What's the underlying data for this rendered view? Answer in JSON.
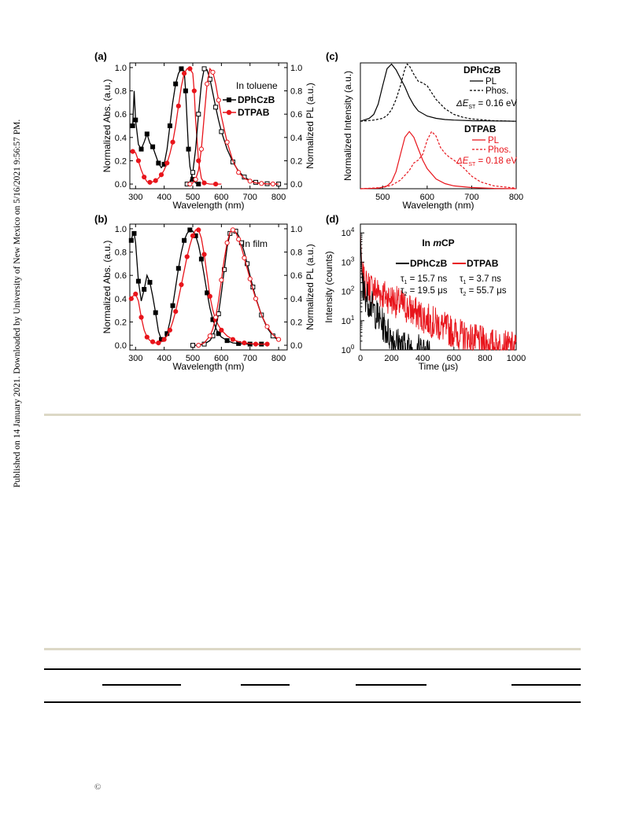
{
  "side_note": "Published on 14 January 2021. Downloaded by University of New Mexico on 5/16/2021 9:56:57 PM.",
  "copyright_symbol": "©",
  "colors": {
    "black_series": "#000000",
    "red_series": "#e8141b"
  },
  "chart_data": [
    {
      "panel": "(a)",
      "type": "line",
      "annotation": "In toluene",
      "xlabel": "Wavelength (nm)",
      "ylabel_left": "Normalized Abs. (a.u.)",
      "ylabel_right": "Normalized PL (a.u.)",
      "xlim": [
        280,
        830
      ],
      "ylim": [
        -0.04,
        1.04
      ],
      "xticks": [
        "300",
        "400",
        "500",
        "600",
        "700",
        "800"
      ],
      "yticks": [
        "0.0",
        "0.2",
        "0.4",
        "0.6",
        "0.8",
        "1.0"
      ],
      "legend": {
        "placement": "right",
        "entries": [
          "DPhCzB",
          "DTPAB"
        ]
      },
      "series": [
        {
          "name": "DPhCzB",
          "role": "absorption",
          "color": "#000000",
          "marker": "square-filled",
          "x": [
            290,
            295,
            300,
            310,
            320,
            330,
            340,
            350,
            360,
            370,
            380,
            390,
            400,
            410,
            420,
            430,
            440,
            450,
            460,
            470,
            475,
            480,
            485,
            490,
            500,
            510,
            520
          ],
          "y": [
            0.5,
            0.8,
            0.55,
            0.34,
            0.3,
            0.36,
            0.43,
            0.35,
            0.32,
            0.25,
            0.18,
            0.14,
            0.17,
            0.3,
            0.5,
            0.7,
            0.86,
            0.95,
            0.99,
            0.97,
            0.8,
            0.55,
            0.3,
            0.15,
            0.04,
            0.01,
            0.0
          ]
        },
        {
          "name": "DTPAB",
          "role": "absorption",
          "color": "#e8141b",
          "marker": "circle-filled",
          "x": [
            290,
            300,
            310,
            320,
            330,
            340,
            350,
            360,
            370,
            380,
            390,
            400,
            410,
            420,
            430,
            440,
            450,
            460,
            470,
            480,
            490,
            500,
            505,
            510,
            520,
            530,
            540,
            560,
            580,
            600
          ],
          "y": [
            0.28,
            0.27,
            0.2,
            0.12,
            0.06,
            0.02,
            0.015,
            0.02,
            0.03,
            0.05,
            0.08,
            0.12,
            0.18,
            0.26,
            0.36,
            0.5,
            0.67,
            0.84,
            0.95,
            0.99,
            0.99,
            0.95,
            0.8,
            0.55,
            0.2,
            0.05,
            0.01,
            0.0,
            0.0,
            0.0
          ]
        },
        {
          "name": "DPhCzB",
          "role": "PL",
          "color": "#000000",
          "marker": "square-open",
          "x": [
            480,
            490,
            500,
            510,
            520,
            530,
            540,
            550,
            560,
            570,
            580,
            590,
            600,
            620,
            640,
            660,
            680,
            700,
            720,
            740,
            760,
            780,
            800
          ],
          "y": [
            0.0,
            0.02,
            0.1,
            0.3,
            0.6,
            0.86,
            0.99,
            0.98,
            0.9,
            0.78,
            0.66,
            0.55,
            0.45,
            0.3,
            0.19,
            0.11,
            0.06,
            0.03,
            0.015,
            0.007,
            0.003,
            0.001,
            0.0
          ]
        },
        {
          "name": "DTPAB",
          "role": "PL",
          "color": "#e8141b",
          "marker": "circle-open",
          "x": [
            490,
            500,
            510,
            520,
            530,
            540,
            550,
            560,
            570,
            580,
            590,
            600,
            620,
            640,
            660,
            680,
            700,
            720,
            740,
            760,
            780,
            800
          ],
          "y": [
            0.0,
            0.01,
            0.04,
            0.12,
            0.3,
            0.58,
            0.86,
            0.99,
            0.96,
            0.86,
            0.72,
            0.58,
            0.36,
            0.2,
            0.1,
            0.05,
            0.025,
            0.01,
            0.005,
            0.002,
            0.001,
            0.0
          ]
        }
      ]
    },
    {
      "panel": "(b)",
      "type": "line",
      "annotation": "In film",
      "xlabel": "Wavelength (nm)",
      "ylabel_left": "Normalized Abs. (a.u.)",
      "ylabel_right": "Normalized PL (a.u.)",
      "xlim": [
        280,
        830
      ],
      "ylim": [
        -0.04,
        1.04
      ],
      "xticks": [
        "300",
        "400",
        "500",
        "600",
        "700",
        "800"
      ],
      "yticks": [
        "0.0",
        "0.2",
        "0.4",
        "0.6",
        "0.8",
        "1.0"
      ],
      "series": [
        {
          "name": "DPhCzB",
          "role": "absorption",
          "color": "#000000",
          "marker": "square-filled",
          "x": [
            285,
            290,
            295,
            300,
            310,
            320,
            330,
            340,
            350,
            360,
            370,
            380,
            390,
            400,
            410,
            420,
            430,
            440,
            450,
            460,
            470,
            480,
            490,
            500,
            510,
            520,
            530,
            540,
            550,
            560,
            570,
            580,
            590,
            600,
            620,
            640,
            660,
            680,
            700,
            720,
            740,
            760
          ],
          "y": [
            0.9,
            0.95,
            0.96,
            0.88,
            0.55,
            0.38,
            0.48,
            0.6,
            0.54,
            0.42,
            0.28,
            0.12,
            0.05,
            0.05,
            0.1,
            0.2,
            0.34,
            0.5,
            0.66,
            0.8,
            0.9,
            0.96,
            0.99,
            0.98,
            0.94,
            0.86,
            0.74,
            0.6,
            0.45,
            0.32,
            0.22,
            0.15,
            0.1,
            0.07,
            0.04,
            0.02,
            0.015,
            0.01,
            0.01,
            0.01,
            0.01,
            0.01
          ]
        },
        {
          "name": "DTPAB",
          "role": "absorption",
          "color": "#e8141b",
          "marker": "circle-filled",
          "x": [
            285,
            290,
            300,
            310,
            320,
            330,
            340,
            350,
            360,
            370,
            380,
            390,
            400,
            410,
            420,
            430,
            440,
            450,
            460,
            470,
            480,
            490,
            500,
            510,
            520,
            530,
            540,
            550,
            560,
            570,
            580,
            590,
            600,
            620,
            640,
            660,
            680,
            700,
            720,
            740,
            760
          ],
          "y": [
            0.4,
            0.42,
            0.44,
            0.38,
            0.24,
            0.13,
            0.07,
            0.04,
            0.03,
            0.02,
            0.02,
            0.03,
            0.05,
            0.08,
            0.13,
            0.2,
            0.29,
            0.4,
            0.52,
            0.64,
            0.76,
            0.86,
            0.94,
            0.99,
            0.99,
            0.92,
            0.78,
            0.6,
            0.42,
            0.3,
            0.22,
            0.17,
            0.13,
            0.08,
            0.05,
            0.03,
            0.02,
            0.015,
            0.01,
            0.01,
            0.01
          ]
        },
        {
          "name": "DPhCzB",
          "role": "PL",
          "color": "#000000",
          "marker": "square-open",
          "x": [
            500,
            520,
            540,
            560,
            570,
            580,
            590,
            600,
            610,
            620,
            630,
            640,
            650,
            660,
            670,
            680,
            690,
            700,
            710,
            720,
            740,
            760,
            780,
            800
          ],
          "y": [
            0.0,
            0.0,
            0.01,
            0.04,
            0.08,
            0.15,
            0.27,
            0.45,
            0.65,
            0.84,
            0.96,
            0.99,
            0.98,
            0.94,
            0.88,
            0.8,
            0.7,
            0.6,
            0.5,
            0.41,
            0.26,
            0.15,
            0.08,
            0.04
          ]
        },
        {
          "name": "DTPAB",
          "role": "PL",
          "color": "#e8141b",
          "marker": "circle-open",
          "x": [
            520,
            540,
            560,
            570,
            580,
            590,
            600,
            610,
            620,
            630,
            640,
            650,
            660,
            670,
            680,
            690,
            700,
            710,
            720,
            740,
            760,
            780,
            800
          ],
          "y": [
            0.0,
            0.02,
            0.08,
            0.14,
            0.24,
            0.38,
            0.56,
            0.74,
            0.88,
            0.97,
            0.99,
            0.97,
            0.91,
            0.84,
            0.75,
            0.66,
            0.57,
            0.48,
            0.4,
            0.26,
            0.16,
            0.09,
            0.05
          ]
        }
      ]
    },
    {
      "panel": "(c)",
      "type": "line",
      "xlabel": "Wavelength (nm)",
      "ylabel": "Normalized Intensity (a.u.)",
      "xlim": [
        450,
        800
      ],
      "ylim": [
        0,
        2.2
      ],
      "xticks": [
        "500",
        "600",
        "700",
        "800"
      ],
      "blocks": [
        {
          "title": "DPhCzB",
          "color": "#000000",
          "pl_label": "PL",
          "phos_label": "Phos.",
          "dest_prefix": "ΔE",
          "dest_sub": "ST",
          "dest_value": " = 0.16 eV"
        },
        {
          "title": "DTPAB",
          "color": "#e8141b",
          "pl_label": "PL",
          "phos_label": "Phos.",
          "dest_prefix": "ΔE",
          "dest_sub": "ST",
          "dest_value": " = 0.18 eV"
        }
      ],
      "series": [
        {
          "name": "DPhCzB PL",
          "color": "#000000",
          "dash": "solid",
          "offset": 1.18,
          "x": [
            450,
            470,
            480,
            490,
            500,
            510,
            520,
            530,
            540,
            550,
            560,
            570,
            580,
            600,
            620,
            640,
            660,
            700,
            750,
            800
          ],
          "y": [
            0.0,
            0.05,
            0.12,
            0.3,
            0.62,
            0.92,
            1.0,
            0.9,
            0.75,
            0.6,
            0.42,
            0.28,
            0.18,
            0.09,
            0.05,
            0.03,
            0.02,
            0.01,
            0.005,
            0.0
          ]
        },
        {
          "name": "DPhCzB Phos.",
          "color": "#000000",
          "dash": "dashed",
          "offset": 1.18,
          "x": [
            450,
            480,
            500,
            510,
            520,
            530,
            540,
            550,
            555,
            560,
            570,
            580,
            590,
            600,
            610,
            620,
            640,
            660,
            680,
            700,
            750,
            800
          ],
          "y": [
            0.0,
            0.02,
            0.05,
            0.1,
            0.2,
            0.38,
            0.62,
            0.92,
            1.0,
            0.97,
            0.82,
            0.7,
            0.67,
            0.62,
            0.5,
            0.38,
            0.22,
            0.12,
            0.07,
            0.04,
            0.01,
            0.0
          ]
        },
        {
          "name": "DTPAB PL",
          "color": "#e8141b",
          "dash": "solid",
          "offset": 0,
          "x": [
            450,
            490,
            510,
            520,
            530,
            540,
            550,
            560,
            570,
            580,
            590,
            600,
            620,
            640,
            660,
            700,
            750,
            800
          ],
          "y": [
            0.0,
            0.01,
            0.05,
            0.12,
            0.3,
            0.6,
            0.9,
            1.0,
            0.9,
            0.7,
            0.5,
            0.35,
            0.17,
            0.09,
            0.05,
            0.02,
            0.005,
            0.0
          ]
        },
        {
          "name": "DTPAB Phos.",
          "color": "#e8141b",
          "dash": "dashed",
          "offset": 0,
          "x": [
            450,
            500,
            520,
            540,
            560,
            570,
            580,
            590,
            600,
            610,
            620,
            630,
            640,
            650,
            660,
            680,
            700,
            720,
            750,
            800
          ],
          "y": [
            0.0,
            0.02,
            0.06,
            0.15,
            0.32,
            0.45,
            0.5,
            0.6,
            0.85,
            1.0,
            0.92,
            0.72,
            0.62,
            0.55,
            0.5,
            0.38,
            0.22,
            0.12,
            0.05,
            0.01
          ]
        }
      ]
    },
    {
      "panel": "(d)",
      "type": "line",
      "scale_y": "log",
      "title": "In mCP",
      "title_prefix": "In ",
      "title_italic": "m",
      "title_suffix": "CP",
      "xlabel": "Time (μs)",
      "ylabel": "Intensity (counts)",
      "xlim": [
        0,
        1000
      ],
      "ylim": [
        1,
        20000
      ],
      "xticks": [
        "0",
        "200",
        "400",
        "600",
        "800",
        "1000"
      ],
      "yticks": [
        {
          "base": "10",
          "exp": "0"
        },
        {
          "base": "10",
          "exp": "1"
        },
        {
          "base": "10",
          "exp": "2"
        },
        {
          "base": "10",
          "exp": "3"
        },
        {
          "base": "10",
          "exp": "4"
        }
      ],
      "legend": [
        {
          "name": "DPhCzB",
          "color": "#000000",
          "tau1_sym": "τ",
          "tau1_sub": "1",
          "tau1_val": " = 15.7 ns",
          "tau2_sym": "τ",
          "tau2_sub": "2",
          "tau2_val": " = 19.5 μs"
        },
        {
          "name": "DTPAB",
          "color": "#e8141b",
          "tau1_sym": "τ",
          "tau1_sub": "1",
          "tau1_val": " = 3.7 ns",
          "tau2_sym": "τ",
          "tau2_sub": "2",
          "tau2_val": " = 55.7 μs"
        }
      ],
      "series": [
        {
          "name": "DTPAB",
          "color": "#e8141b",
          "a_prompt": 9000,
          "tau_prompt": 3.5,
          "a_delayed": 220,
          "tau_delayed": 140,
          "noise_floor": 1,
          "end": 1000
        },
        {
          "name": "DPhCzB",
          "color": "#000000",
          "a_prompt": 9000,
          "tau_prompt": 3.0,
          "a_delayed": 150,
          "tau_delayed": 45,
          "noise_floor": 1,
          "end": 450
        }
      ]
    }
  ]
}
